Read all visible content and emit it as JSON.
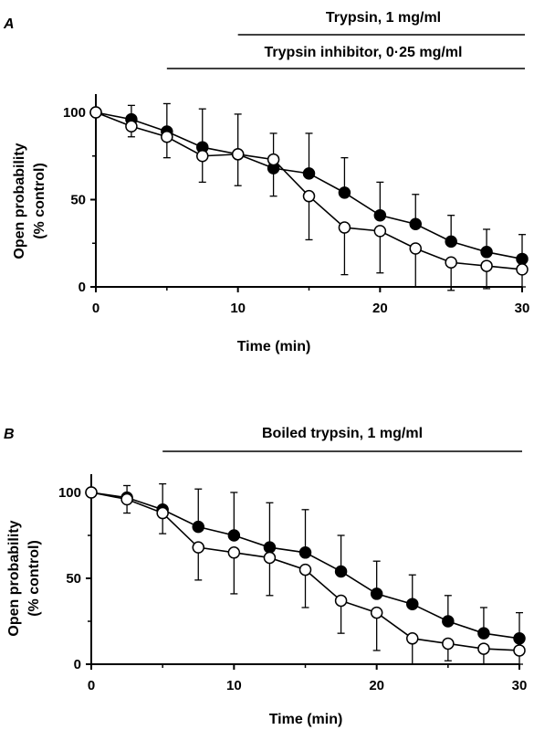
{
  "chart_data": [
    {
      "panel": "A",
      "type": "line",
      "xlabel": "Time (min)",
      "ylabel_lines": [
        "Open probability",
        "(% control)"
      ],
      "xlim": [
        0,
        30
      ],
      "ylim": [
        0,
        110
      ],
      "xticks": [
        0,
        10,
        20,
        30
      ],
      "yticks": [
        0,
        50,
        100
      ],
      "treatments": [
        {
          "label": "Trypsin, 1 mg/ml",
          "start": 10,
          "end": 30
        },
        {
          "label": "Trypsin inhibitor, 0·25 mg/ml",
          "start": 5,
          "end": 30
        }
      ],
      "series": [
        {
          "style": "filled",
          "x": [
            0,
            2.5,
            5,
            7.5,
            10,
            12.5,
            15,
            17.5,
            20,
            22.5,
            25,
            27.5,
            30
          ],
          "y": [
            100,
            96,
            89,
            80,
            76,
            68,
            65,
            54,
            41,
            36,
            26,
            20,
            16
          ],
          "err": [
            0,
            8,
            16,
            22,
            23,
            20,
            23,
            20,
            19,
            17,
            15,
            13,
            14
          ]
        },
        {
          "style": "open",
          "x": [
            0,
            2.5,
            5,
            7.5,
            10,
            12.5,
            15,
            17.5,
            20,
            22.5,
            25,
            27.5,
            30
          ],
          "y": [
            100,
            92,
            86,
            75,
            76,
            73,
            52,
            34,
            32,
            22,
            14,
            12,
            10
          ],
          "err": [
            0,
            6,
            12,
            15,
            18,
            21,
            25,
            27,
            24,
            22,
            16,
            13,
            10
          ]
        }
      ]
    },
    {
      "panel": "B",
      "type": "line",
      "xlabel": "Time (min)",
      "ylabel_lines": [
        "Open probability",
        "(% control)"
      ],
      "xlim": [
        0,
        30
      ],
      "ylim": [
        0,
        110
      ],
      "xticks": [
        0,
        10,
        20,
        30
      ],
      "yticks": [
        0,
        50,
        100
      ],
      "treatments": [
        {
          "label": "Boiled trypsin, 1 mg/ml",
          "start": 5,
          "end": 30
        }
      ],
      "series": [
        {
          "style": "filled",
          "x": [
            0,
            2.5,
            5,
            7.5,
            10,
            12.5,
            15,
            17.5,
            20,
            22.5,
            25,
            27.5,
            30
          ],
          "y": [
            100,
            97,
            90,
            80,
            75,
            68,
            65,
            54,
            41,
            35,
            25,
            18,
            15
          ],
          "err": [
            0,
            7,
            15,
            22,
            25,
            26,
            25,
            21,
            19,
            17,
            15,
            15,
            15
          ]
        },
        {
          "style": "open",
          "x": [
            0,
            2.5,
            5,
            7.5,
            10,
            12.5,
            15,
            17.5,
            20,
            22.5,
            25,
            27.5,
            30
          ],
          "y": [
            100,
            96,
            88,
            68,
            65,
            62,
            55,
            37,
            30,
            15,
            12,
            9,
            8
          ],
          "err": [
            0,
            8,
            12,
            19,
            24,
            22,
            22,
            19,
            22,
            15,
            10,
            9,
            8
          ]
        }
      ]
    }
  ]
}
